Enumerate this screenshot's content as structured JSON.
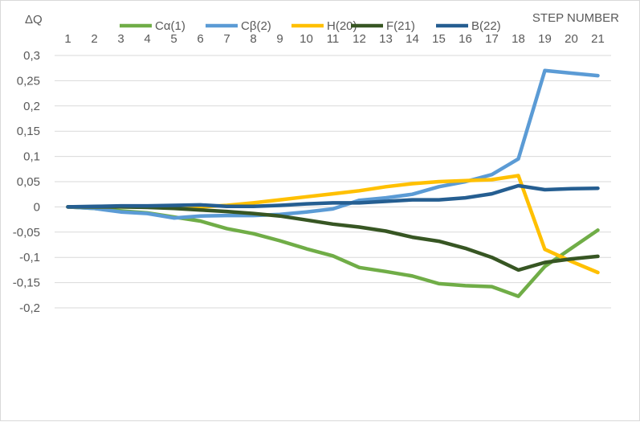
{
  "chart_data": {
    "type": "line",
    "ylabel": "ΔQ",
    "xlabel": "STEP NUMBER",
    "ylim": [
      -0.2,
      0.3
    ],
    "yticks": [
      "0,3",
      "0,25",
      "0,2",
      "0,15",
      "0,1",
      "0,05",
      "0",
      "-0,05",
      "-0,1",
      "-0,15",
      "-0,2"
    ],
    "ytick_values": [
      0.3,
      0.25,
      0.2,
      0.15,
      0.1,
      0.05,
      0,
      -0.05,
      -0.1,
      -0.15,
      -0.2
    ],
    "categories": [
      "1",
      "2",
      "3",
      "4",
      "5",
      "6",
      "7",
      "8",
      "9",
      "10",
      "11",
      "12",
      "13",
      "14",
      "15",
      "16",
      "17",
      "18",
      "19",
      "20",
      "21"
    ],
    "grid": true,
    "legend_position": "top",
    "series": [
      {
        "name": "Cα(1)",
        "color": "#70ad47",
        "values": [
          0,
          -0.003,
          -0.008,
          -0.012,
          -0.02,
          -0.028,
          -0.043,
          -0.053,
          -0.067,
          -0.083,
          -0.097,
          -0.12,
          -0.128,
          -0.137,
          -0.152,
          -0.156,
          -0.158,
          -0.177,
          -0.118,
          -0.082,
          -0.046
        ]
      },
      {
        "name": "Cβ(2)",
        "color": "#5b9bd5",
        "values": [
          0,
          -0.003,
          -0.01,
          -0.013,
          -0.022,
          -0.018,
          -0.017,
          -0.017,
          -0.015,
          -0.01,
          -0.004,
          0.013,
          0.018,
          0.025,
          0.04,
          0.05,
          0.064,
          0.095,
          0.27,
          0.265,
          0.26
        ]
      },
      {
        "name": "H(20)",
        "color": "#ffc000",
        "values": [
          0,
          0,
          0,
          0,
          0,
          0,
          0.003,
          0.008,
          0.014,
          0.02,
          0.026,
          0.032,
          0.04,
          0.046,
          0.05,
          0.052,
          0.054,
          0.062,
          -0.084,
          -0.108,
          -0.13
        ]
      },
      {
        "name": "F(21)",
        "color": "#375623",
        "values": [
          0,
          0,
          0,
          -0.001,
          -0.003,
          -0.006,
          -0.009,
          -0.013,
          -0.018,
          -0.026,
          -0.034,
          -0.04,
          -0.048,
          -0.06,
          -0.068,
          -0.082,
          -0.1,
          -0.125,
          -0.11,
          -0.103,
          -0.098
        ]
      },
      {
        "name": "B(22)",
        "color": "#255e91",
        "values": [
          0,
          0.001,
          0.002,
          0.002,
          0.003,
          0.004,
          0.001,
          0.001,
          0.003,
          0.006,
          0.008,
          0.008,
          0.011,
          0.014,
          0.014,
          0.018,
          0.026,
          0.042,
          0.034,
          0.036,
          0.037
        ]
      }
    ]
  }
}
